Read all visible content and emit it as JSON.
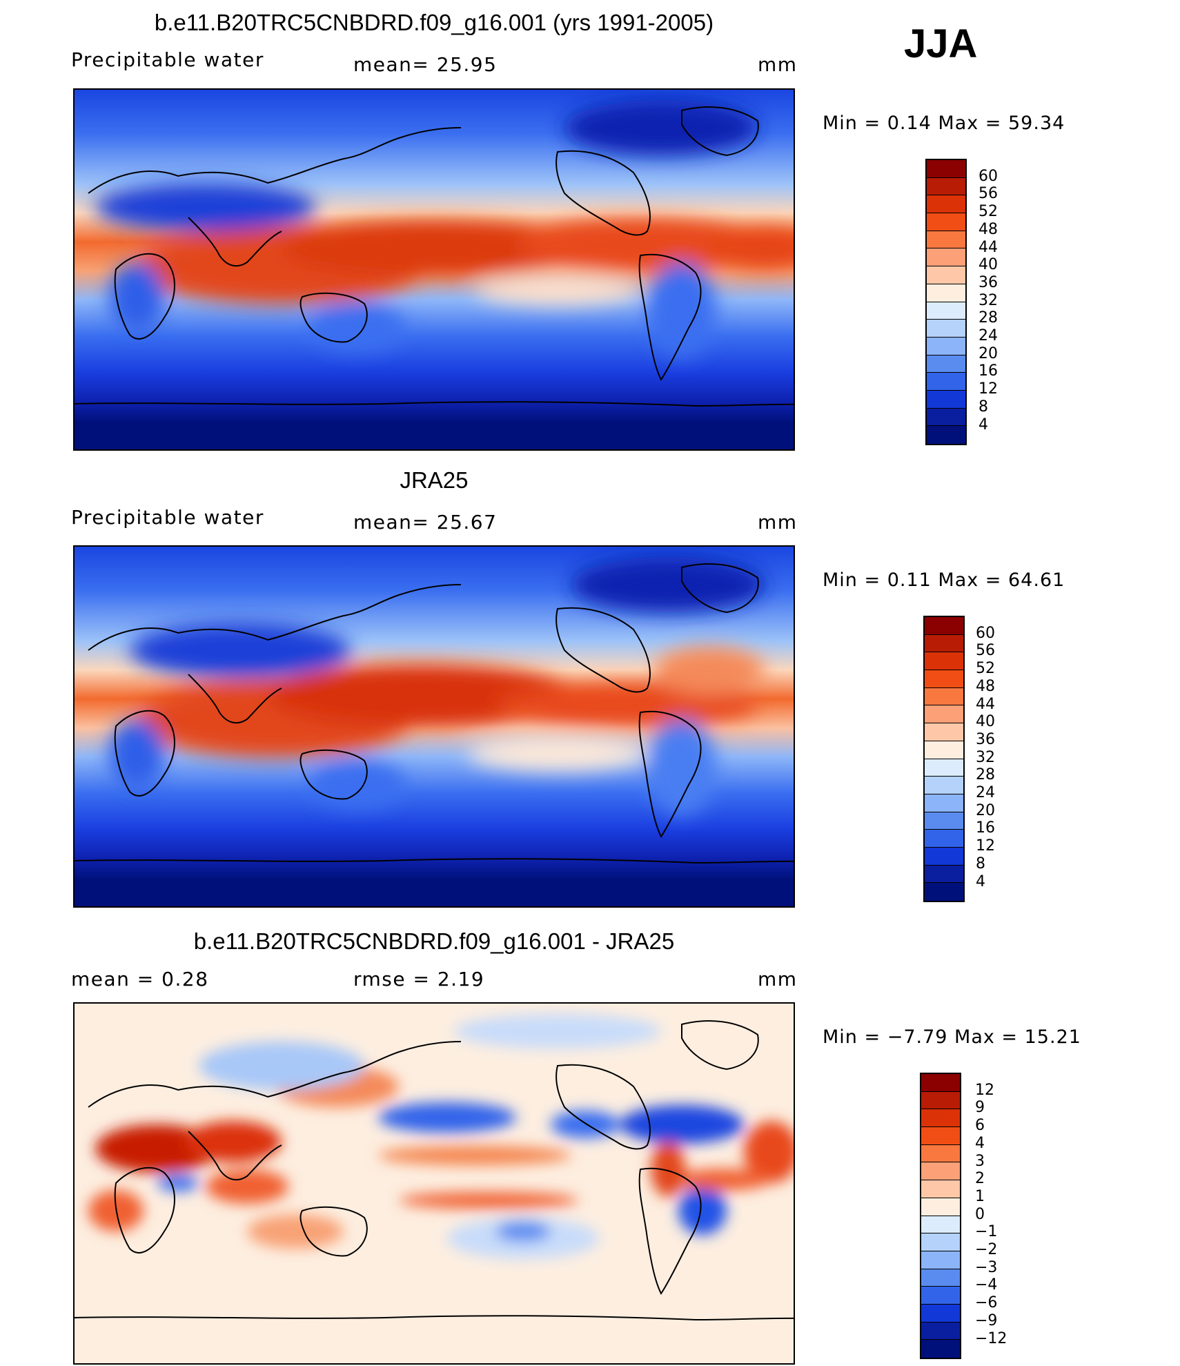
{
  "season": "JJA",
  "panels": [
    {
      "title": "b.e11.B20TRC5CNBDRD.f09_g16.001 (yrs 1991-2005)",
      "left_label": "Precipitable water",
      "center_label": "mean=   25.95",
      "units": "mm",
      "minmax": "Min =    0.14  Max =   59.34",
      "colorbar_levels": [
        "60",
        "56",
        "52",
        "48",
        "44",
        "40",
        "36",
        "32",
        "28",
        "24",
        "20",
        "16",
        "12",
        "8",
        "4"
      ],
      "colorbar_colors": [
        "#8b0000",
        "#b81c05",
        "#dc3208",
        "#f04e14",
        "#f87840",
        "#fca078",
        "#fec8a8",
        "#fdeee0",
        "#dcecfc",
        "#b4d2fa",
        "#8cb4f8",
        "#5a8cf0",
        "#3264ea",
        "#1238d8",
        "#0a1ea0",
        "#00107a"
      ]
    },
    {
      "title": "JRA25",
      "left_label": "Precipitable water",
      "center_label": "mean=   25.67",
      "units": "mm",
      "minmax": "Min =    0.11  Max =   64.61",
      "colorbar_levels": [
        "60",
        "56",
        "52",
        "48",
        "44",
        "40",
        "36",
        "32",
        "28",
        "24",
        "20",
        "16",
        "12",
        "8",
        "4"
      ],
      "colorbar_colors": [
        "#8b0000",
        "#b81c05",
        "#dc3208",
        "#f04e14",
        "#f87840",
        "#fca078",
        "#fec8a8",
        "#fdeee0",
        "#dcecfc",
        "#b4d2fa",
        "#8cb4f8",
        "#5a8cf0",
        "#3264ea",
        "#1238d8",
        "#0a1ea0",
        "#00107a"
      ]
    },
    {
      "title": "b.e11.B20TRC5CNBDRD.f09_g16.001 - JRA25",
      "left_label": "mean =    0.28",
      "center_label": "rmse =    2.19",
      "units": "mm",
      "minmax": "Min =  −7.79  Max =   15.21",
      "colorbar_levels": [
        "12",
        "9",
        "6",
        "4",
        "3",
        "2",
        "1",
        "0",
        "−1",
        "−2",
        "−3",
        "−4",
        "−6",
        "−9",
        "−12"
      ],
      "colorbar_colors": [
        "#8b0000",
        "#b81c05",
        "#dc3208",
        "#f04e14",
        "#f87840",
        "#fca078",
        "#fec8a8",
        "#fdeee0",
        "#dcecfc",
        "#b4d2fa",
        "#8cb4f8",
        "#5a8cf0",
        "#3264ea",
        "#1238d8",
        "#0a1ea0",
        "#00107a"
      ]
    }
  ]
}
